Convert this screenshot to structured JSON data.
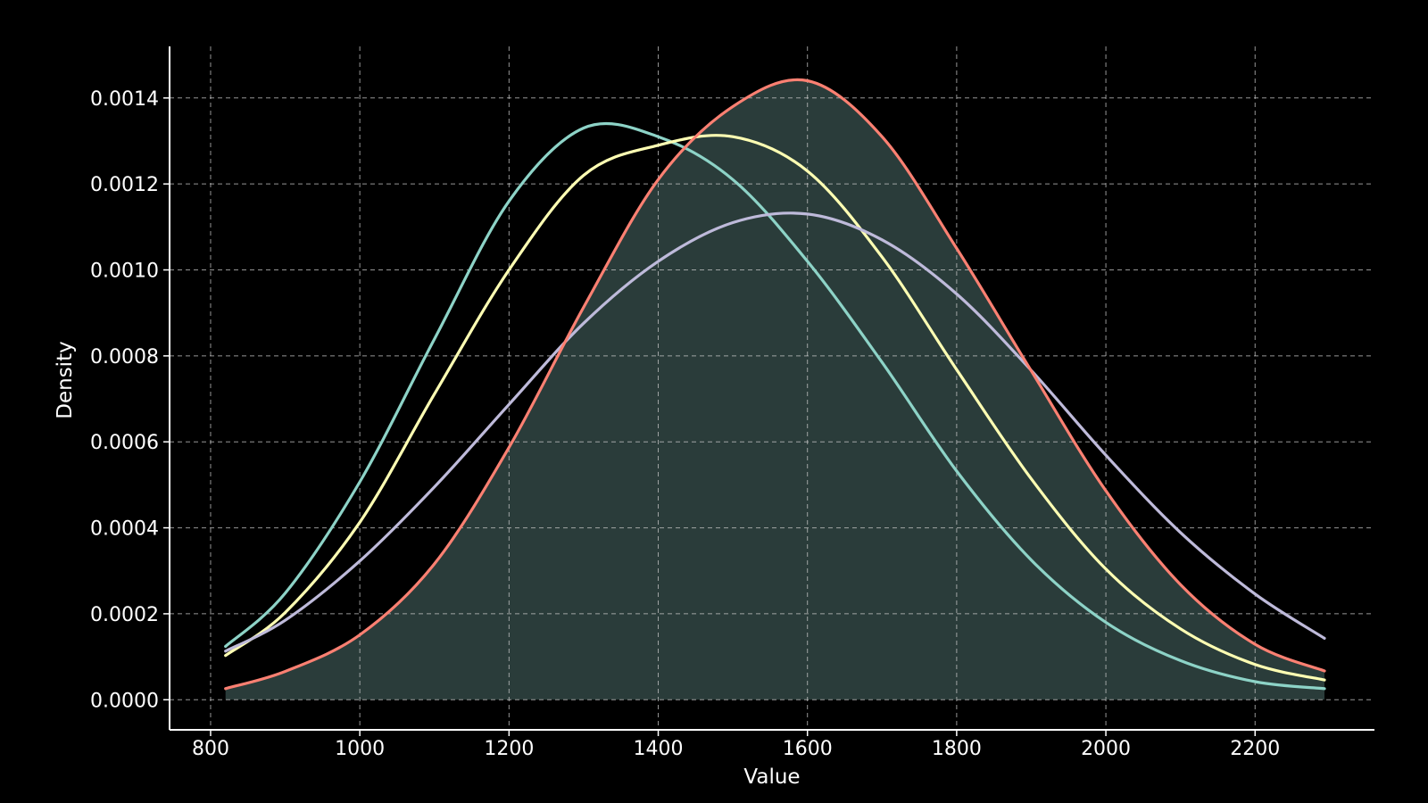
{
  "chart_data": {
    "type": "line",
    "title": "",
    "xlabel": "Value",
    "ylabel": "Density",
    "xlim": [
      745,
      2360
    ],
    "ylim": [
      -7e-05,
      0.00152
    ],
    "x_ticks": [
      800,
      1000,
      1200,
      1400,
      1600,
      1800,
      2000,
      2200
    ],
    "x_tick_labels": [
      "800",
      "1000",
      "1200",
      "1400",
      "1600",
      "1800",
      "2000",
      "2200"
    ],
    "y_ticks": [
      0,
      0.0002,
      0.0004,
      0.0006,
      0.0008,
      0.001,
      0.0012,
      0.0014
    ],
    "y_tick_labels": [
      "0.0000",
      "0.0002",
      "0.0004",
      "0.0006",
      "0.0008",
      "0.0010",
      "0.0012",
      "0.0014"
    ],
    "grid": true,
    "background": "#000000",
    "x_range": [
      820,
      2293
    ],
    "x": [
      820,
      900,
      1000,
      1100,
      1200,
      1300,
      1400,
      1500,
      1600,
      1700,
      1800,
      1900,
      2000,
      2100,
      2200,
      2293
    ],
    "series": [
      {
        "color": "#8dd3c7",
        "values": [
          0.000124,
          0.000248,
          0.000507,
          0.000839,
          0.00116,
          0.00133,
          0.00131,
          0.00121,
          0.00102,
          0.000785,
          0.000532,
          0.000325,
          0.00018,
          9.1e-05,
          4.2e-05,
          2.6e-05
        ]
      },
      {
        "color": "#ffffb3",
        "values": [
          0.000103,
          0.000203,
          0.000413,
          0.000711,
          0.001,
          0.00122,
          0.00129,
          0.00131,
          0.00123,
          0.00103,
          0.000768,
          0.000514,
          0.000304,
          0.000165,
          8.2e-05,
          4.6e-05
        ]
      },
      {
        "color": "#bebada",
        "values": [
          0.000113,
          0.000185,
          0.000323,
          0.000495,
          0.000687,
          0.000876,
          0.00102,
          0.00111,
          0.00113,
          0.00107,
          0.000944,
          0.000766,
          0.000569,
          0.000389,
          0.000246,
          0.000143
        ]
      },
      {
        "color": "#fb8072",
        "fill": "#2a3c3a",
        "values": [
          2.6e-05,
          6.6e-05,
          0.000151,
          0.000316,
          0.000587,
          0.000913,
          0.00121,
          0.00138,
          0.00144,
          0.00131,
          0.00105,
          0.000765,
          0.000486,
          0.000268,
          0.000129,
          6.7e-05
        ]
      }
    ]
  }
}
